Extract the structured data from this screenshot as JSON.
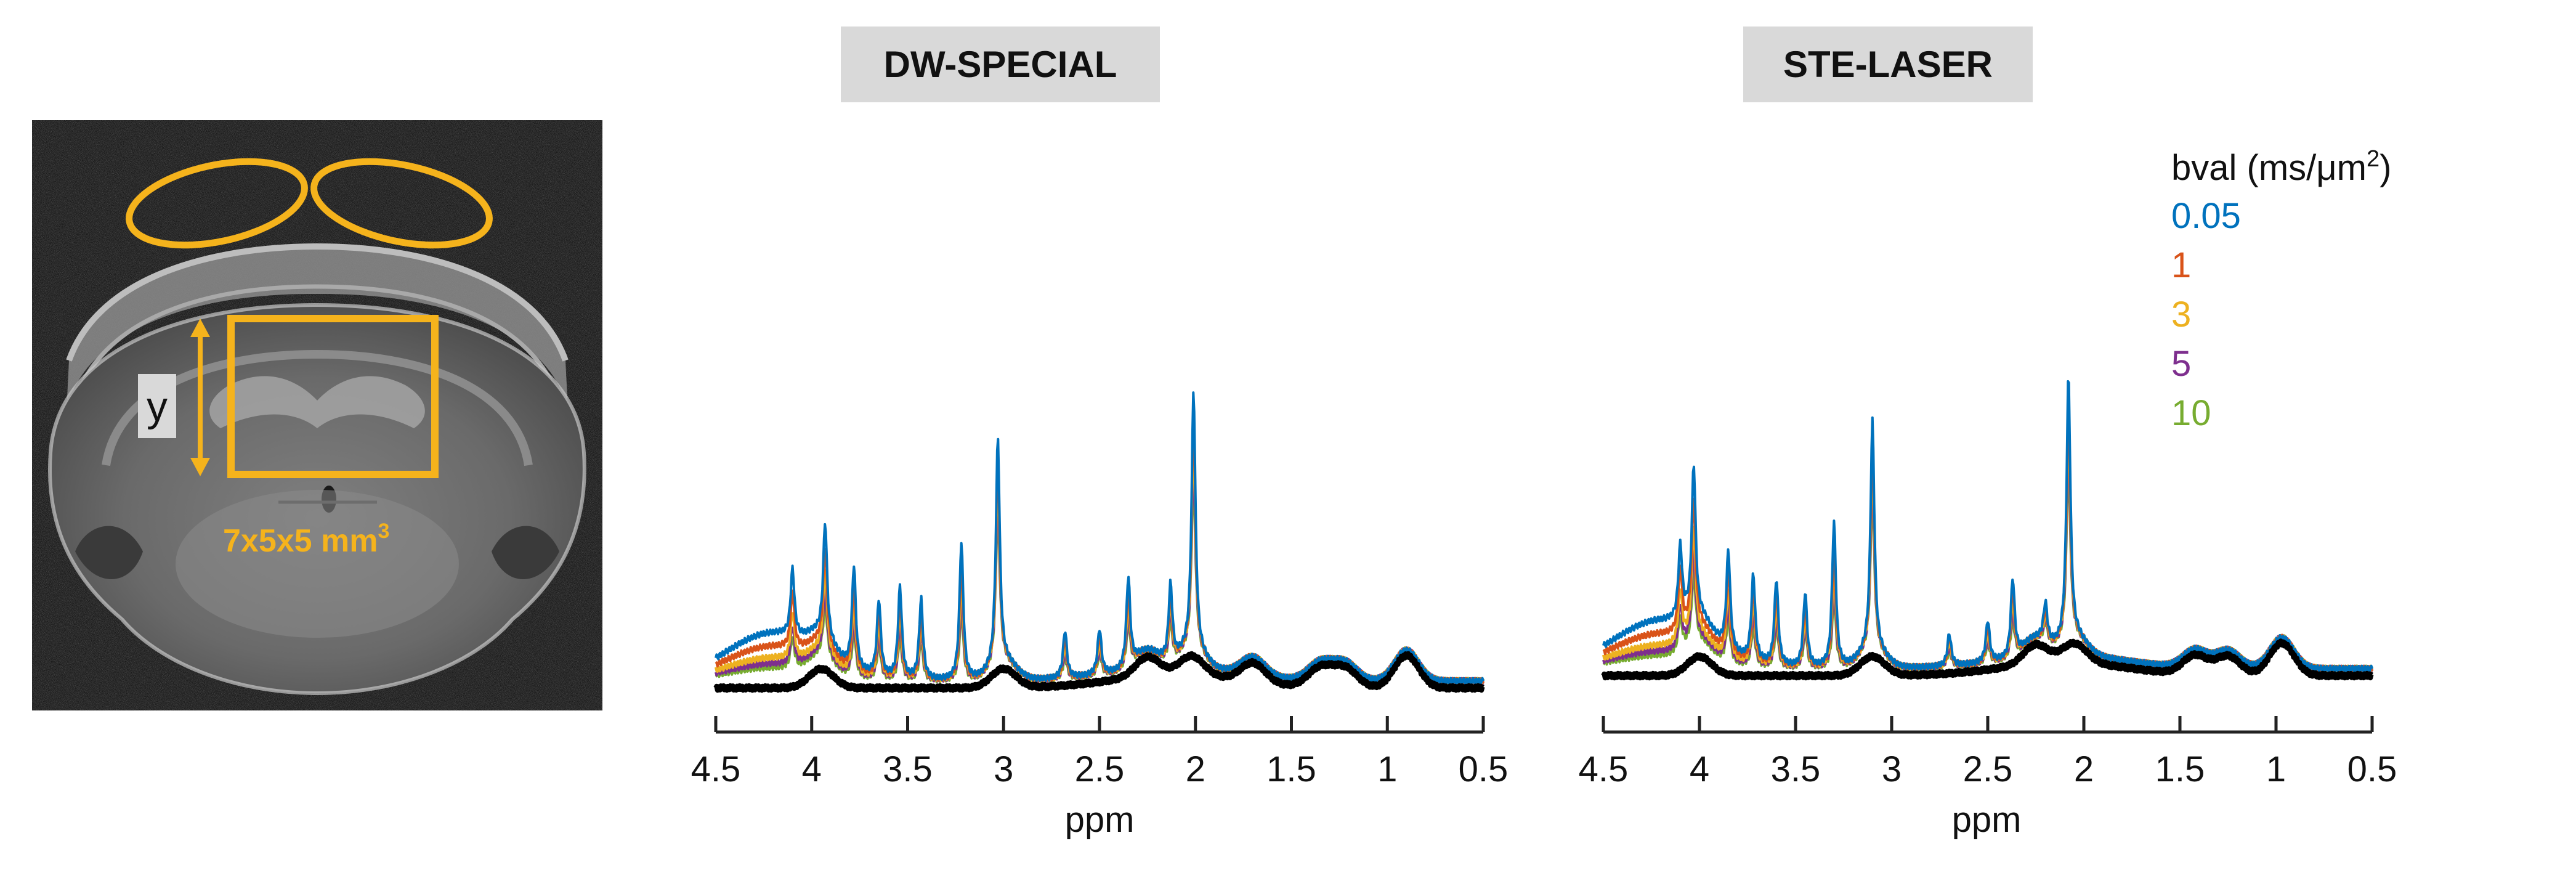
{
  "mri_panel": {
    "y_label": "y",
    "voxel_label": "7x5x5 mm",
    "voxel_label_exp": "3",
    "overlay_color": "#F5B31C"
  },
  "panels": [
    {
      "title": "DW-SPECIAL"
    },
    {
      "title": "STE-LASER"
    }
  ],
  "legend": {
    "title": "bval (ms/μm",
    "title_exp": "2",
    "title_end": ")",
    "entries": [
      {
        "label": "0.05",
        "color": "#0072BD"
      },
      {
        "label": "1",
        "color": "#D95319"
      },
      {
        "label": "3",
        "color": "#EDB120"
      },
      {
        "label": "5",
        "color": "#7E2F8E"
      },
      {
        "label": "10",
        "color": "#77AC30"
      }
    ]
  },
  "axis": {
    "xlabel": "ppm",
    "ticks": [
      "4.5",
      "4",
      "3.5",
      "3",
      "2.5",
      "2",
      "1.5",
      "1",
      "0.5"
    ]
  },
  "chart_data": [
    {
      "type": "line",
      "title": "DW-SPECIAL",
      "xlabel": "ppm",
      "ylabel": "",
      "xlim": [
        4.5,
        0.5
      ],
      "x_reversed": true,
      "y_axis_shown": false,
      "series_legend": [
        "0.05",
        "1",
        "3",
        "5",
        "10"
      ],
      "peaks_ppm": [
        4.1,
        3.93,
        3.78,
        3.65,
        3.54,
        3.43,
        3.22,
        3.03,
        2.68,
        2.5,
        2.35,
        2.13,
        2.01,
        1.33,
        0.9
      ],
      "peak_heights": {
        "0.05": [
          0.35,
          0.6,
          0.54,
          0.4,
          0.48,
          0.42,
          0.72,
          1.19,
          0.25,
          0.24,
          0.47,
          0.4,
          1.36
        ],
        "10": [
          0.17,
          0.3,
          0.26,
          0.2,
          0.24,
          0.21,
          0.38,
          0.9,
          0.12,
          0.12,
          0.24,
          0.21,
          1.0
        ]
      },
      "macromolecule_baseline_peaks_ppm": [
        3.95,
        3.0,
        2.25,
        2.02,
        1.7,
        1.35,
        1.22,
        0.9
      ]
    },
    {
      "type": "line",
      "title": "STE-LASER",
      "xlabel": "ppm",
      "ylabel": "",
      "xlim": [
        4.5,
        0.5
      ],
      "x_reversed": true,
      "y_axis_shown": false,
      "series_legend": [
        "0.05",
        "1",
        "3",
        "5",
        "10"
      ],
      "peaks_ppm": [
        4.1,
        4.03,
        3.85,
        3.72,
        3.6,
        3.45,
        3.3,
        3.1,
        2.7,
        2.5,
        2.37,
        2.2,
        2.08,
        1.42,
        0.97
      ],
      "peak_heights": {
        "0.05": [
          0.38,
          0.78,
          0.52,
          0.45,
          0.45,
          0.39,
          0.76,
          1.2,
          0.17,
          0.22,
          0.41,
          0.2,
          1.38
        ],
        "10": [
          0.19,
          0.39,
          0.26,
          0.22,
          0.23,
          0.2,
          0.38,
          0.88,
          0.09,
          0.11,
          0.21,
          0.1,
          1.0
        ]
      },
      "macromolecule_baseline_peaks_ppm": [
        4.0,
        3.1,
        2.25,
        2.05,
        1.42,
        1.25,
        0.97
      ]
    }
  ]
}
